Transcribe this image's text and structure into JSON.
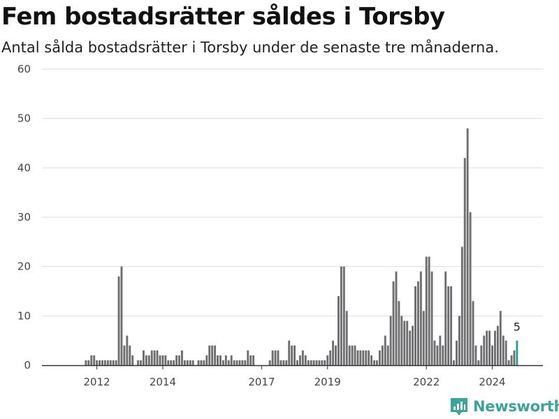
{
  "title": "Fem bostadsrätter såldes i Torsby",
  "subtitle": "Antal sålda bostadsrätter i Torsby under de senaste tre månaderna.",
  "brand": {
    "name": "Newsworthy",
    "color": "#3aa59a"
  },
  "colors": {
    "bar": "#6e6e70",
    "highlight": "#2a9d95",
    "grid": "#dddddd",
    "axis": "#333333"
  },
  "chart_data": {
    "type": "bar",
    "xlabel": "",
    "ylabel": "",
    "ylim": [
      0,
      60
    ],
    "yticks": [
      0,
      10,
      20,
      30,
      40,
      50,
      60
    ],
    "grid": true,
    "xticks": [
      "2012",
      "2014",
      "2017",
      "2019",
      "2022",
      "2024"
    ],
    "x_start": "2011-01",
    "period": "month",
    "values": [
      0,
      0,
      0,
      0,
      0,
      0,
      0,
      0,
      1,
      1,
      2,
      2,
      1,
      1,
      1,
      1,
      1,
      1,
      1,
      1,
      18,
      20,
      4,
      6,
      4,
      2,
      0,
      1,
      1,
      3,
      2,
      2,
      3,
      3,
      3,
      2,
      2,
      2,
      1,
      1,
      1,
      2,
      2,
      3,
      1,
      1,
      1,
      1,
      0,
      1,
      1,
      1,
      2,
      4,
      4,
      4,
      2,
      2,
      1,
      2,
      1,
      2,
      1,
      1,
      1,
      1,
      1,
      3,
      2,
      2,
      0,
      0,
      0,
      0,
      0,
      1,
      3,
      3,
      3,
      1,
      1,
      1,
      5,
      4,
      4,
      1,
      2,
      3,
      2,
      1,
      1,
      1,
      1,
      1,
      1,
      1,
      2,
      3,
      5,
      4,
      14,
      20,
      20,
      11,
      4,
      4,
      4,
      3,
      3,
      3,
      3,
      3,
      2,
      1,
      1,
      3,
      4,
      6,
      4,
      10,
      17,
      19,
      13,
      10,
      9,
      9,
      7,
      8,
      16,
      17,
      19,
      11,
      22,
      22,
      19,
      5,
      4,
      6,
      4,
      19,
      16,
      16,
      1,
      5,
      10,
      24,
      42,
      48,
      31,
      13,
      4,
      1,
      4,
      6,
      7,
      7,
      4,
      7,
      8,
      11,
      6,
      5,
      1,
      2,
      3,
      5
    ],
    "highlight_last": true,
    "annotations": [
      {
        "label": "5"
      }
    ]
  }
}
